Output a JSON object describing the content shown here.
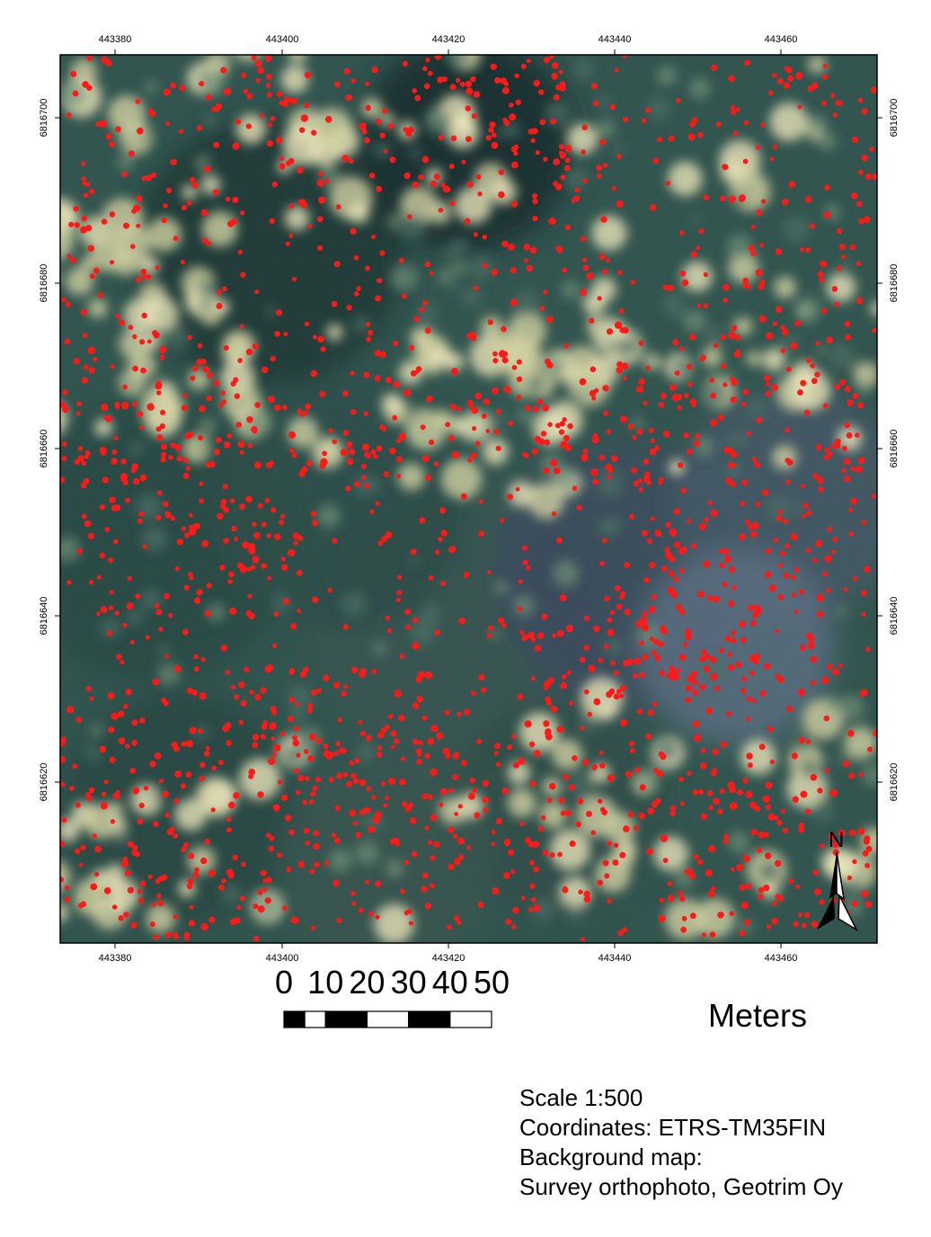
{
  "map": {
    "grid": {
      "x_ticks": [
        "443380",
        "443400",
        "443420",
        "443440",
        "443460"
      ],
      "y_ticks": [
        "6816700",
        "6816680",
        "6816660",
        "6816640",
        "6816620"
      ]
    },
    "point_color": "#ff1a1a",
    "frame_color": "#000000"
  },
  "scale_bar": {
    "labels": [
      "0",
      "10",
      "20",
      "30",
      "40",
      "50"
    ],
    "unit": "Meters"
  },
  "north_arrow": {
    "letter": "N"
  },
  "info": {
    "scale": "Scale 1:500",
    "coordinates": "Coordinates: ETRS-TM35FIN",
    "background_label": "Background map:",
    "background_source": "Survey orthophoto, Geotrim Oy"
  }
}
